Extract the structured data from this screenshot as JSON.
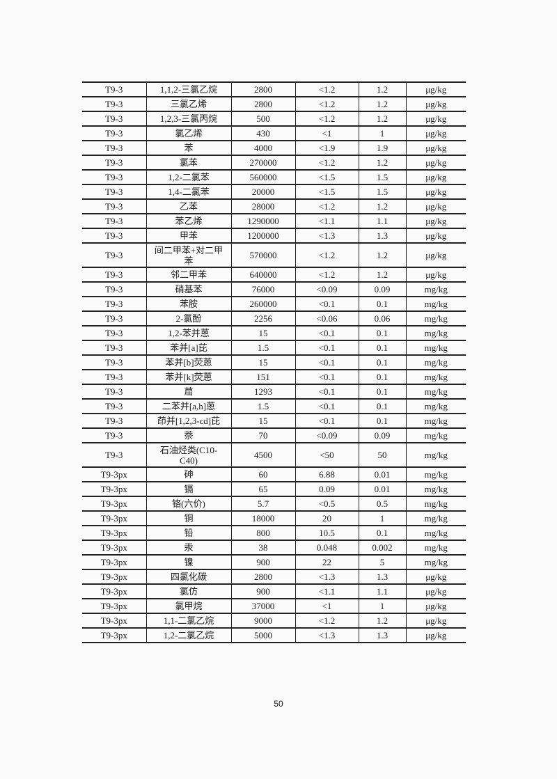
{
  "table": {
    "rows": [
      [
        "T9-3",
        "1,1,2-三氯乙烷",
        "2800",
        "<1.2",
        "1.2",
        "μg/kg"
      ],
      [
        "T9-3",
        "三氯乙烯",
        "2800",
        "<1.2",
        "1.2",
        "μg/kg"
      ],
      [
        "T9-3",
        "1,2,3-三氯丙烷",
        "500",
        "<1.2",
        "1.2",
        "μg/kg"
      ],
      [
        "T9-3",
        "氯乙烯",
        "430",
        "<1",
        "1",
        "μg/kg"
      ],
      [
        "T9-3",
        "苯",
        "4000",
        "<1.9",
        "1.9",
        "μg/kg"
      ],
      [
        "T9-3",
        "氯苯",
        "270000",
        "<1.2",
        "1.2",
        "μg/kg"
      ],
      [
        "T9-3",
        "1,2-二氯苯",
        "560000",
        "<1.5",
        "1.5",
        "μg/kg"
      ],
      [
        "T9-3",
        "1,4-二氯苯",
        "20000",
        "<1.5",
        "1.5",
        "μg/kg"
      ],
      [
        "T9-3",
        "乙苯",
        "28000",
        "<1.2",
        "1.2",
        "μg/kg"
      ],
      [
        "T9-3",
        "苯乙烯",
        "1290000",
        "<1.1",
        "1.1",
        "μg/kg"
      ],
      [
        "T9-3",
        "甲苯",
        "1200000",
        "<1.3",
        "1.3",
        "μg/kg"
      ],
      [
        "T9-3",
        "间二甲苯+对二甲苯",
        "570000",
        "<1.2",
        "1.2",
        "μg/kg"
      ],
      [
        "T9-3",
        "邻二甲苯",
        "640000",
        "<1.2",
        "1.2",
        "μg/kg"
      ],
      [
        "T9-3",
        "硝基苯",
        "76000",
        "<0.09",
        "0.09",
        "mg/kg"
      ],
      [
        "T9-3",
        "苯胺",
        "260000",
        "<0.1",
        "0.1",
        "mg/kg"
      ],
      [
        "T9-3",
        "2-氯酚",
        "2256",
        "<0.06",
        "0.06",
        "mg/kg"
      ],
      [
        "T9-3",
        "1,2-苯并蒽",
        "15",
        "<0.1",
        "0.1",
        "mg/kg"
      ],
      [
        "T9-3",
        "苯并[a]芘",
        "1.5",
        "<0.1",
        "0.1",
        "mg/kg"
      ],
      [
        "T9-3",
        "苯并[b]荧蒽",
        "15",
        "<0.1",
        "0.1",
        "mg/kg"
      ],
      [
        "T9-3",
        "苯并[k]荧蒽",
        "151",
        "<0.1",
        "0.1",
        "mg/kg"
      ],
      [
        "T9-3",
        "䓛",
        "1293",
        "<0.1",
        "0.1",
        "mg/kg"
      ],
      [
        "T9-3",
        "二苯并[a,h]蒽",
        "1.5",
        "<0.1",
        "0.1",
        "mg/kg"
      ],
      [
        "T9-3",
        "茚并[1,2,3-cd]芘",
        "15",
        "<0.1",
        "0.1",
        "mg/kg"
      ],
      [
        "T9-3",
        "萘",
        "70",
        "<0.09",
        "0.09",
        "mg/kg"
      ],
      [
        "T9-3",
        "石油烃类(C10-C40)",
        "4500",
        "<50",
        "50",
        "mg/kg"
      ],
      [
        "T9-3px",
        "砷",
        "60",
        "6.88",
        "0.01",
        "mg/kg"
      ],
      [
        "T9-3px",
        "镉",
        "65",
        "0.09",
        "0.01",
        "mg/kg"
      ],
      [
        "T9-3px",
        "铬(六价)",
        "5.7",
        "<0.5",
        "0.5",
        "mg/kg"
      ],
      [
        "T9-3px",
        "铜",
        "18000",
        "20",
        "1",
        "mg/kg"
      ],
      [
        "T9-3px",
        "铅",
        "800",
        "10.5",
        "0.1",
        "mg/kg"
      ],
      [
        "T9-3px",
        "汞",
        "38",
        "0.048",
        "0.002",
        "mg/kg"
      ],
      [
        "T9-3px",
        "镍",
        "900",
        "22",
        "5",
        "mg/kg"
      ],
      [
        "T9-3px",
        "四氯化碳",
        "2800",
        "<1.3",
        "1.3",
        "μg/kg"
      ],
      [
        "T9-3px",
        "氯仿",
        "900",
        "<1.1",
        "1.1",
        "μg/kg"
      ],
      [
        "T9-3px",
        "氯甲烷",
        "37000",
        "<1",
        "1",
        "μg/kg"
      ],
      [
        "T9-3px",
        "1,1-二氯乙烷",
        "9000",
        "<1.2",
        "1.2",
        "μg/kg"
      ],
      [
        "T9-3px",
        "1,2-二氯乙烷",
        "5000",
        "<1.3",
        "1.3",
        "μg/kg"
      ]
    ]
  },
  "page_number": "50"
}
